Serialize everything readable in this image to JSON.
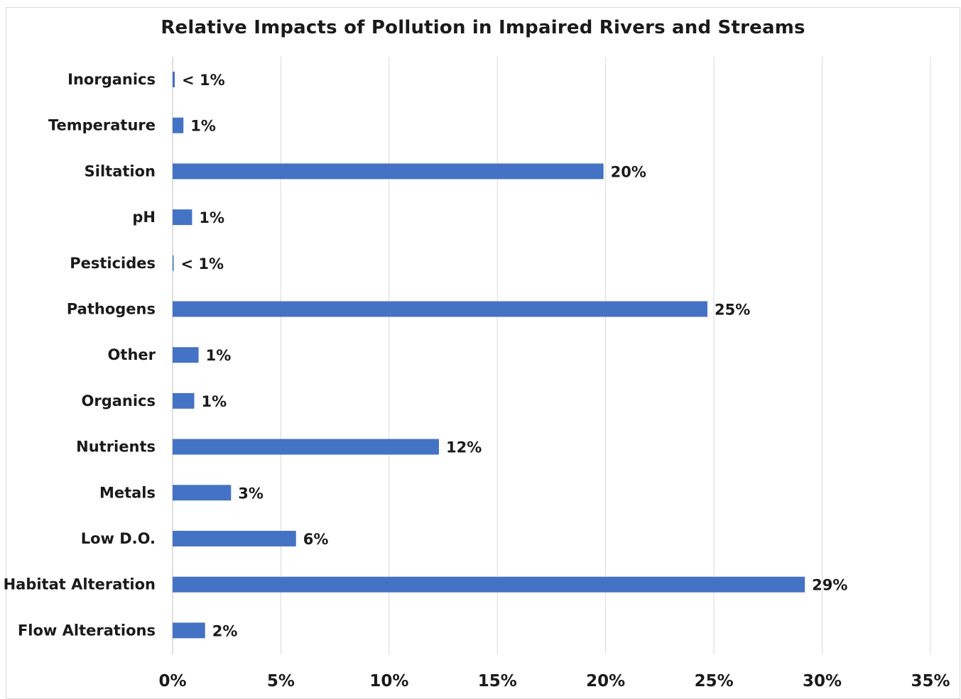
{
  "chart_data": {
    "type": "bar",
    "orientation": "horizontal",
    "title": "Relative Impacts of Pollution in Impaired Rivers and Streams",
    "xlabel": "",
    "ylabel": "",
    "xlim": [
      0,
      35
    ],
    "xticks": [
      0,
      5,
      10,
      15,
      20,
      25,
      30,
      35
    ],
    "xtick_labels": [
      "0%",
      "5%",
      "10%",
      "15%",
      "20%",
      "25%",
      "30%",
      "35%"
    ],
    "grid": "vertical",
    "legend": "none",
    "bar_color": "#4472C4",
    "categories": [
      "Inorganics",
      "Temperature",
      "Siltation",
      "pH",
      "Pesticides",
      "Pathogens",
      "Other",
      "Organics",
      "Nutrients",
      "Metals",
      "Low D.O.",
      "Habitat Alteration",
      "Flow Alterations"
    ],
    "values": [
      0.1,
      0.5,
      19.9,
      0.9,
      0.03,
      24.7,
      1.2,
      1.0,
      12.3,
      2.7,
      5.7,
      29.2,
      1.5
    ],
    "data_labels": [
      "< 1%",
      "1%",
      "20%",
      "1%",
      "< 1%",
      "25%",
      "1%",
      "1%",
      "12%",
      "3%",
      "6%",
      "29%",
      "2%"
    ]
  }
}
